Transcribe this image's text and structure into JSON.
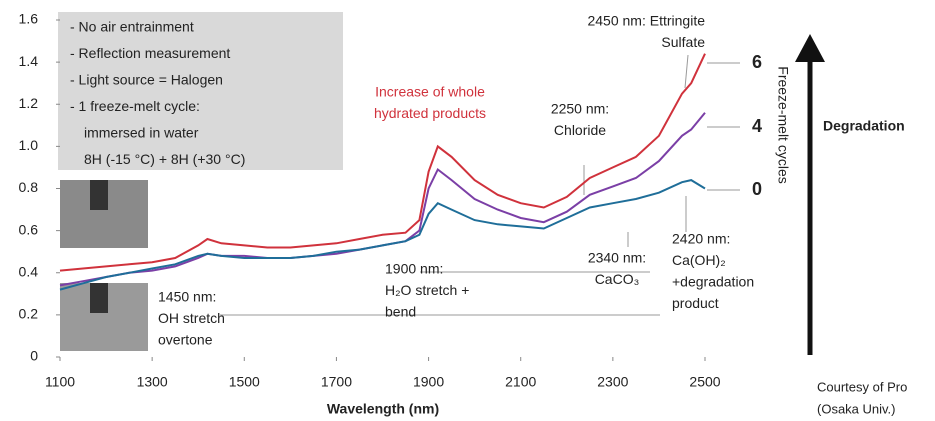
{
  "chart_data": {
    "type": "line",
    "x_label": "Wavelength (nm)",
    "xlim": [
      1100,
      2500
    ],
    "xticks": [
      1100,
      1300,
      1500,
      1700,
      1900,
      2100,
      2300,
      2500
    ],
    "ylim": [
      0,
      1.6
    ],
    "yticks": [
      0,
      0.2,
      0.4,
      0.6,
      0.8,
      {
        "value": 1,
        "label": "1.0"
      },
      1.2,
      1.4,
      1.6
    ],
    "grid": false,
    "x": [
      1100,
      1150,
      1200,
      1250,
      1300,
      1350,
      1400,
      1420,
      1450,
      1500,
      1550,
      1600,
      1650,
      1700,
      1750,
      1800,
      1850,
      1880,
      1900,
      1920,
      1950,
      2000,
      2050,
      2100,
      2150,
      2200,
      2250,
      2300,
      2350,
      2400,
      2450,
      2470,
      2500
    ],
    "series": [
      {
        "name": "6",
        "color": "#d0323c",
        "values": [
          0.41,
          0.42,
          0.43,
          0.44,
          0.45,
          0.47,
          0.53,
          0.56,
          0.54,
          0.53,
          0.52,
          0.52,
          0.53,
          0.54,
          0.56,
          0.58,
          0.59,
          0.65,
          0.88,
          1.0,
          0.95,
          0.84,
          0.77,
          0.73,
          0.71,
          0.76,
          0.85,
          0.9,
          0.95,
          1.05,
          1.25,
          1.3,
          1.44
        ]
      },
      {
        "name": "4",
        "color": "#7b3fa6",
        "values": [
          0.34,
          0.36,
          0.38,
          0.4,
          0.41,
          0.43,
          0.47,
          0.49,
          0.48,
          0.48,
          0.47,
          0.47,
          0.48,
          0.49,
          0.51,
          0.53,
          0.55,
          0.6,
          0.8,
          0.89,
          0.84,
          0.75,
          0.7,
          0.66,
          0.64,
          0.69,
          0.77,
          0.81,
          0.85,
          0.93,
          1.05,
          1.08,
          1.16
        ]
      },
      {
        "name": "0",
        "color": "#1f6e99",
        "values": [
          0.32,
          0.35,
          0.38,
          0.4,
          0.42,
          0.44,
          0.48,
          0.49,
          0.48,
          0.47,
          0.47,
          0.47,
          0.48,
          0.5,
          0.51,
          0.53,
          0.55,
          0.58,
          0.68,
          0.73,
          0.7,
          0.65,
          0.63,
          0.62,
          0.61,
          0.66,
          0.71,
          0.73,
          0.75,
          0.78,
          0.83,
          0.84,
          0.8
        ]
      }
    ],
    "info_box": [
      "- No air entrainment",
      "- Reflection measurement",
      "- Light source = Halogen",
      "- 1 freeze-melt cycle:",
      "immersed in water",
      "8H (-15 °C) + 8H (+30 °C)"
    ],
    "annotations": [
      {
        "text": [
          "2450 nm: Ettringite",
          "Sulfate"
        ],
        "color": "#222222"
      },
      {
        "text": [
          "Increase of whole",
          "hydrated products"
        ],
        "color": "#d0323c"
      },
      {
        "text": [
          "2250 nm:",
          "Chloride"
        ],
        "color": "#222222"
      },
      {
        "text": [
          "1900 nm:",
          "H₂O stretch +",
          "bend"
        ],
        "color": "#222222"
      },
      {
        "text": [
          "1450 nm:",
          "OH stretch",
          "overtone"
        ],
        "color": "#222222"
      },
      {
        "text": [
          "2340 nm:",
          "CaCO₃"
        ],
        "color": "#222222"
      },
      {
        "text": [
          "2420 nm:",
          "Ca(OH)₂",
          "+degradation",
          "product"
        ],
        "color": "#222222"
      }
    ],
    "right_axis_label": "Freeze-melt cycles",
    "arrow_label": "Degradation",
    "credit": [
      "Courtesy of Pro",
      "(Osaka Univ.)"
    ]
  }
}
